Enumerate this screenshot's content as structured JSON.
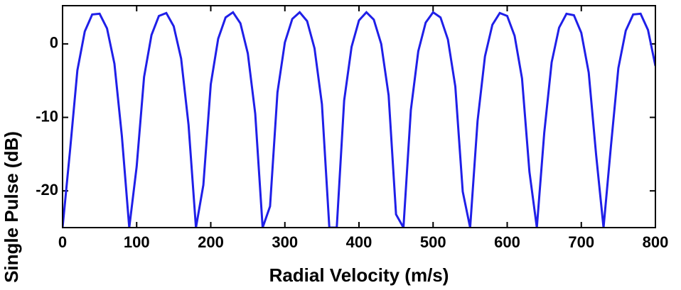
{
  "chart_data": {
    "type": "line",
    "xlabel": "Radial Velocity (m/s)",
    "ylabel": "Single Pulse (dB)",
    "x": [
      0,
      10,
      20,
      30,
      40,
      50,
      60,
      70,
      80,
      90,
      100,
      110,
      120,
      130,
      140,
      150,
      160,
      170,
      180,
      190,
      200,
      210,
      220,
      230,
      240,
      250,
      260,
      270,
      280,
      290,
      300,
      310,
      320,
      330,
      340,
      350,
      360,
      370,
      380,
      390,
      400,
      410,
      420,
      430,
      440,
      450,
      460,
      470,
      480,
      490,
      500,
      510,
      520,
      530,
      540,
      550,
      560,
      570,
      580,
      590,
      600,
      610,
      620,
      630,
      640,
      650,
      660,
      670,
      680,
      690,
      700,
      710,
      720,
      730,
      740,
      750,
      760,
      770,
      780,
      790,
      800
    ],
    "series": [
      {
        "color": "#1f1fe8",
        "values": [
          -25,
          -14.6,
          -3.6,
          1.7,
          4.0,
          4.1,
          2.1,
          -2.7,
          -12.5,
          -25,
          -16.7,
          -4.5,
          1.2,
          3.8,
          4.2,
          2.4,
          -2.0,
          -11.0,
          -25,
          -19.2,
          -5.5,
          0.7,
          3.6,
          4.3,
          2.8,
          -1.3,
          -9.5,
          -25,
          -22.1,
          -6.6,
          0.2,
          3.4,
          4.3,
          3.1,
          -0.6,
          -8.2,
          -25,
          -25,
          -7.7,
          -0.4,
          3.2,
          4.3,
          3.3,
          0.0,
          -7.0,
          -23.2,
          -25,
          -9.0,
          -1.0,
          2.9,
          4.3,
          3.6,
          0.6,
          -5.8,
          -20.1,
          -25,
          -10.5,
          -1.7,
          2.6,
          4.2,
          3.8,
          1.1,
          -4.7,
          -17.4,
          -25,
          -12.1,
          -2.5,
          2.2,
          4.1,
          3.9,
          1.5,
          -3.9,
          -15.1,
          -25,
          -13.9,
          -3.3,
          1.8,
          4.0,
          4.1,
          1.9,
          -3.0
        ]
      }
    ],
    "xlim": [
      0,
      800
    ],
    "xticks": [
      0,
      100,
      200,
      300,
      400,
      500,
      600,
      700,
      800
    ],
    "ylim": [
      -25,
      5.2
    ],
    "yticks": [
      -20,
      -10,
      0
    ]
  }
}
